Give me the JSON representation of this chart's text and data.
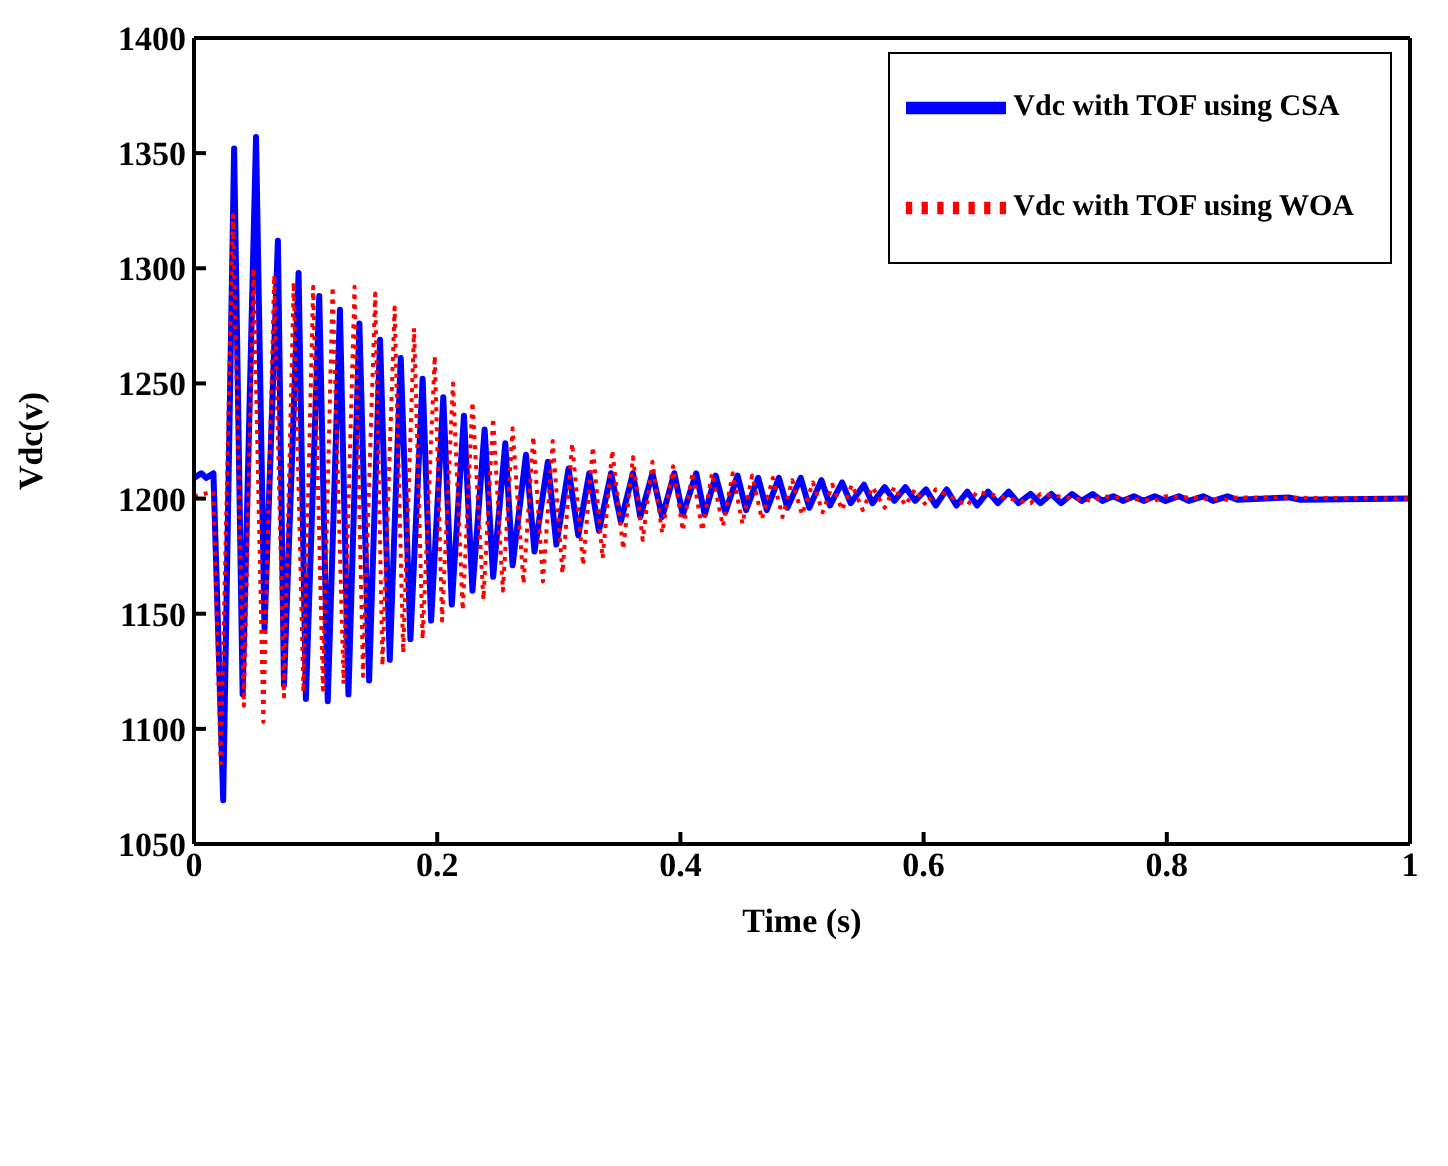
{
  "chart_data": {
    "type": "line",
    "xlabel": "Time (s)",
    "ylabel": "Vdc(v)",
    "xlim": [
      0,
      1
    ],
    "xticks": [
      0,
      0.2,
      0.4,
      0.6,
      0.8,
      1
    ],
    "ylim": [
      1050,
      1400
    ],
    "yticks": [
      1050,
      1100,
      1150,
      1200,
      1250,
      1300,
      1350,
      1400
    ],
    "grid": false,
    "legend": "top right",
    "marker": "none",
    "series": [
      {
        "name": "Vdc with TOF using CSA",
        "color": "#0000ff",
        "line_style": "solid",
        "x": [
          0,
          0.006,
          0.01,
          0.016,
          0.024,
          0.033,
          0.04,
          0.051,
          0.058,
          0.069,
          0.074,
          0.086,
          0.092,
          0.103,
          0.11,
          0.12,
          0.127,
          0.136,
          0.144,
          0.153,
          0.161,
          0.17,
          0.178,
          0.188,
          0.195,
          0.205,
          0.212,
          0.222,
          0.229,
          0.239,
          0.246,
          0.256,
          0.262,
          0.273,
          0.28,
          0.291,
          0.298,
          0.308,
          0.316,
          0.325,
          0.333,
          0.343,
          0.351,
          0.361,
          0.367,
          0.377,
          0.385,
          0.395,
          0.402,
          0.413,
          0.42,
          0.429,
          0.437,
          0.447,
          0.454,
          0.464,
          0.471,
          0.481,
          0.488,
          0.499,
          0.506,
          0.516,
          0.523,
          0.533,
          0.54,
          0.551,
          0.558,
          0.568,
          0.576,
          0.585,
          0.593,
          0.602,
          0.61,
          0.619,
          0.627,
          0.636,
          0.644,
          0.653,
          0.661,
          0.67,
          0.678,
          0.688,
          0.696,
          0.705,
          0.713,
          0.722,
          0.73,
          0.739,
          0.747,
          0.756,
          0.764,
          0.773,
          0.781,
          0.79,
          0.799,
          0.81,
          0.818,
          0.83,
          0.838,
          0.85,
          0.858,
          0.9,
          0.91,
          1
        ],
        "values": [
          1209,
          1211,
          1209,
          1211,
          1069,
          1352,
          1115,
          1357,
          1143.5,
          1312,
          1119,
          1298,
          1113,
          1288,
          1112,
          1282,
          1115,
          1276,
          1121,
          1269,
          1130,
          1261,
          1139,
          1252,
          1147,
          1244,
          1154,
          1236,
          1160,
          1230,
          1166,
          1224,
          1171,
          1219,
          1177,
          1216,
          1180,
          1213,
          1184,
          1211,
          1186,
          1211,
          1190,
          1211,
          1192,
          1211,
          1192,
          1211,
          1193,
          1211,
          1193,
          1210,
          1194,
          1210,
          1195,
          1209,
          1195,
          1209,
          1196,
          1209,
          1196,
          1208,
          1197,
          1207,
          1198,
          1206,
          1198,
          1205,
          1199,
          1205,
          1199,
          1204,
          1197,
          1204,
          1197,
          1203,
          1197,
          1203,
          1198,
          1203,
          1198,
          1202,
          1198,
          1202,
          1198,
          1202,
          1199,
          1202,
          1199,
          1201,
          1199,
          1201,
          1199,
          1201,
          1199,
          1201,
          1199,
          1201,
          1199,
          1201,
          1199.5,
          1200.5,
          1199.5,
          1200
        ]
      },
      {
        "name": "Vdc with TOF using WOA",
        "color": "#ff0000",
        "line_style": "dotted",
        "x": [
          0,
          0.016,
          0.022,
          0.032,
          0.041,
          0.049,
          0.057,
          0.066,
          0.074,
          0.082,
          0.09,
          0.098,
          0.106,
          0.114,
          0.123,
          0.132,
          0.139,
          0.149,
          0.155,
          0.165,
          0.172,
          0.181,
          0.188,
          0.198,
          0.204,
          0.213,
          0.221,
          0.229,
          0.238,
          0.246,
          0.254,
          0.262,
          0.271,
          0.279,
          0.287,
          0.295,
          0.303,
          0.311,
          0.32,
          0.328,
          0.336,
          0.344,
          0.353,
          0.361,
          0.369,
          0.377,
          0.385,
          0.394,
          0.402,
          0.41,
          0.418,
          0.426,
          0.435,
          0.443,
          0.451,
          0.459,
          0.467,
          0.476,
          0.484,
          0.492,
          0.5,
          0.509,
          0.517,
          0.525,
          0.533,
          0.541,
          0.55,
          0.558,
          0.568,
          0.576,
          0.585,
          0.593,
          0.602,
          0.61,
          0.636,
          0.644,
          0.688,
          0.696,
          0.739,
          0.747,
          0.79,
          0.799,
          0.85,
          0.858,
          1
        ],
        "values": [
          1201,
          1203,
          1085,
          1323,
          1110,
          1300,
          1103,
          1297,
          1114,
          1294,
          1116,
          1292,
          1117,
          1292,
          1119.5,
          1292,
          1123,
          1289,
          1127.5,
          1283,
          1133,
          1274,
          1139,
          1262,
          1147,
          1250,
          1151.5,
          1242,
          1156,
          1235,
          1160,
          1230.5,
          1163,
          1227,
          1164,
          1225,
          1167.5,
          1224,
          1171,
          1222.5,
          1174,
          1221,
          1178,
          1218,
          1182,
          1216,
          1185,
          1214,
          1186,
          1211.5,
          1186,
          1211,
          1188,
          1211,
          1189,
          1210,
          1191,
          1209,
          1192,
          1208,
          1193,
          1207,
          1194,
          1206,
          1195,
          1206,
          1195,
          1205,
          1196,
          1205,
          1197,
          1204,
          1197,
          1204,
          1197,
          1203,
          1198,
          1202,
          1199,
          1201,
          1199,
          1201,
          1199.5,
          1200.5,
          1200
        ]
      }
    ]
  }
}
